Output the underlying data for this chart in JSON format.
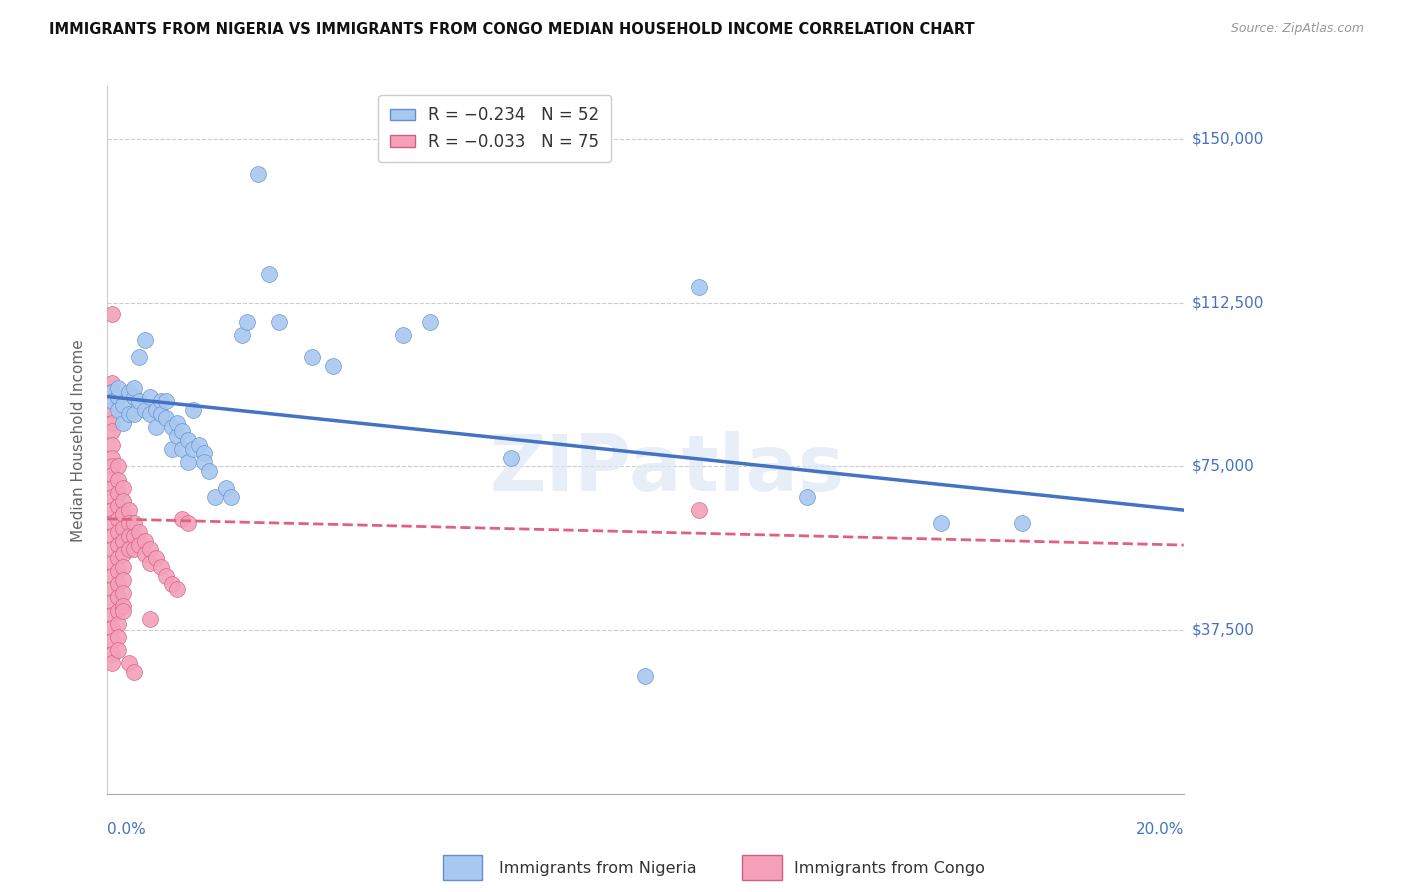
{
  "title": "IMMIGRANTS FROM NIGERIA VS IMMIGRANTS FROM CONGO MEDIAN HOUSEHOLD INCOME CORRELATION CHART",
  "source": "Source: ZipAtlas.com",
  "ylabel": "Median Household Income",
  "yticks": [
    0,
    37500,
    75000,
    112500,
    150000
  ],
  "ytick_labels": [
    "",
    "$37,500",
    "$75,000",
    "$112,500",
    "$150,000"
  ],
  "xlim": [
    0.0,
    0.2
  ],
  "ylim": [
    0,
    162000
  ],
  "watermark": "ZIPatlas",
  "nigeria_color": "#a8c8f0",
  "congo_color": "#f4a0b8",
  "nigeria_line_color": "#4472c4",
  "congo_line_color": "#e06080",
  "background_color": "#ffffff",
  "nigeria_line_x0": 0.0,
  "nigeria_line_y0": 91000,
  "nigeria_line_x1": 0.2,
  "nigeria_line_y1": 65000,
  "congo_line_x0": 0.0,
  "congo_line_y0": 63000,
  "congo_line_x1": 0.2,
  "congo_line_y1": 57000,
  "nigeria_scatter": [
    [
      0.001,
      92000
    ],
    [
      0.001,
      90000
    ],
    [
      0.002,
      91000
    ],
    [
      0.002,
      88000
    ],
    [
      0.002,
      93000
    ],
    [
      0.003,
      89000
    ],
    [
      0.003,
      85000
    ],
    [
      0.004,
      92000
    ],
    [
      0.004,
      87000
    ],
    [
      0.005,
      91000
    ],
    [
      0.005,
      87000
    ],
    [
      0.005,
      93000
    ],
    [
      0.006,
      100000
    ],
    [
      0.006,
      90000
    ],
    [
      0.007,
      104000
    ],
    [
      0.007,
      88000
    ],
    [
      0.008,
      91000
    ],
    [
      0.008,
      87000
    ],
    [
      0.009,
      84000
    ],
    [
      0.009,
      88000
    ],
    [
      0.01,
      90000
    ],
    [
      0.01,
      87000
    ],
    [
      0.011,
      86000
    ],
    [
      0.011,
      90000
    ],
    [
      0.012,
      84000
    ],
    [
      0.012,
      79000
    ],
    [
      0.013,
      82000
    ],
    [
      0.013,
      85000
    ],
    [
      0.014,
      83000
    ],
    [
      0.014,
      79000
    ],
    [
      0.015,
      81000
    ],
    [
      0.015,
      76000
    ],
    [
      0.016,
      88000
    ],
    [
      0.016,
      79000
    ],
    [
      0.017,
      80000
    ],
    [
      0.018,
      78000
    ],
    [
      0.018,
      76000
    ],
    [
      0.019,
      74000
    ],
    [
      0.02,
      68000
    ],
    [
      0.022,
      70000
    ],
    [
      0.023,
      68000
    ],
    [
      0.025,
      105000
    ],
    [
      0.026,
      108000
    ],
    [
      0.028,
      142000
    ],
    [
      0.03,
      119000
    ],
    [
      0.032,
      108000
    ],
    [
      0.038,
      100000
    ],
    [
      0.042,
      98000
    ],
    [
      0.055,
      105000
    ],
    [
      0.06,
      108000
    ],
    [
      0.075,
      77000
    ],
    [
      0.1,
      27000
    ],
    [
      0.11,
      116000
    ],
    [
      0.13,
      68000
    ],
    [
      0.155,
      62000
    ],
    [
      0.17,
      62000
    ]
  ],
  "congo_scatter": [
    [
      0.001,
      94000
    ],
    [
      0.001,
      92000
    ],
    [
      0.001,
      88000
    ],
    [
      0.001,
      85000
    ],
    [
      0.001,
      83000
    ],
    [
      0.001,
      80000
    ],
    [
      0.001,
      77000
    ],
    [
      0.001,
      75000
    ],
    [
      0.001,
      73000
    ],
    [
      0.001,
      70000
    ],
    [
      0.001,
      68000
    ],
    [
      0.001,
      65000
    ],
    [
      0.001,
      62000
    ],
    [
      0.001,
      59000
    ],
    [
      0.001,
      56000
    ],
    [
      0.001,
      53000
    ],
    [
      0.001,
      50000
    ],
    [
      0.001,
      47000
    ],
    [
      0.001,
      44000
    ],
    [
      0.001,
      41000
    ],
    [
      0.001,
      38000
    ],
    [
      0.001,
      35000
    ],
    [
      0.001,
      32000
    ],
    [
      0.001,
      30000
    ],
    [
      0.001,
      110000
    ],
    [
      0.002,
      75000
    ],
    [
      0.002,
      72000
    ],
    [
      0.002,
      69000
    ],
    [
      0.002,
      66000
    ],
    [
      0.002,
      63000
    ],
    [
      0.002,
      60000
    ],
    [
      0.002,
      57000
    ],
    [
      0.002,
      54000
    ],
    [
      0.002,
      51000
    ],
    [
      0.002,
      48000
    ],
    [
      0.002,
      45000
    ],
    [
      0.002,
      42000
    ],
    [
      0.002,
      39000
    ],
    [
      0.002,
      36000
    ],
    [
      0.002,
      33000
    ],
    [
      0.003,
      70000
    ],
    [
      0.003,
      67000
    ],
    [
      0.003,
      64000
    ],
    [
      0.003,
      61000
    ],
    [
      0.003,
      58000
    ],
    [
      0.003,
      55000
    ],
    [
      0.003,
      52000
    ],
    [
      0.003,
      49000
    ],
    [
      0.003,
      46000
    ],
    [
      0.003,
      43000
    ],
    [
      0.004,
      65000
    ],
    [
      0.004,
      62000
    ],
    [
      0.004,
      59000
    ],
    [
      0.004,
      56000
    ],
    [
      0.005,
      62000
    ],
    [
      0.005,
      59000
    ],
    [
      0.005,
      56000
    ],
    [
      0.006,
      60000
    ],
    [
      0.006,
      57000
    ],
    [
      0.007,
      58000
    ],
    [
      0.007,
      55000
    ],
    [
      0.008,
      56000
    ],
    [
      0.008,
      53000
    ],
    [
      0.009,
      54000
    ],
    [
      0.01,
      52000
    ],
    [
      0.011,
      50000
    ],
    [
      0.012,
      48000
    ],
    [
      0.013,
      47000
    ],
    [
      0.014,
      63000
    ],
    [
      0.015,
      62000
    ],
    [
      0.003,
      42000
    ],
    [
      0.004,
      30000
    ],
    [
      0.005,
      28000
    ],
    [
      0.008,
      40000
    ],
    [
      0.11,
      65000
    ]
  ]
}
